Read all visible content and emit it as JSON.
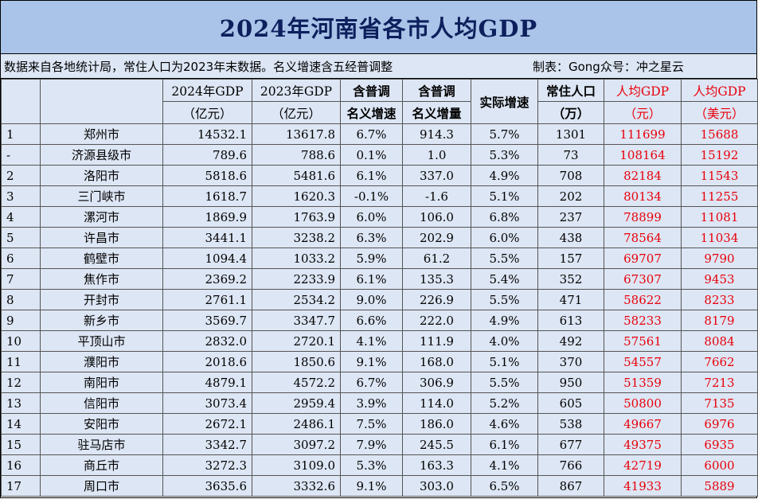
{
  "title": "2024年河南省各市人均GDP",
  "note": {
    "source": "数据来自各地统计局，常住人口为2023年末数据。名义增速含五经普调整",
    "author": "制表：Gong众号：冲之星云"
  },
  "headers": {
    "gdp2024": [
      "2024年GDP",
      "（亿元）"
    ],
    "gdp2023": [
      "2023年GDP",
      "（亿元）"
    ],
    "nominal_rate": [
      "含普调",
      "名义增速"
    ],
    "nominal_inc": [
      "含普调",
      "名义增量"
    ],
    "real_rate": "实际增速",
    "population": [
      "常住人口",
      "（万）"
    ],
    "per_cny": [
      "人均GDP",
      "（元）"
    ],
    "per_usd": [
      "人均GDP",
      "（美元）"
    ]
  },
  "rows": [
    {
      "rank": "1",
      "city": "郑州市",
      "gdp2024": "14532.1",
      "gdp2023": "13617.8",
      "nominal_rate": "6.7%",
      "nominal_inc": "914.3",
      "real_rate": "5.7%",
      "population": "1301",
      "per_cny": "111699",
      "per_usd": "15688"
    },
    {
      "rank": "-",
      "city": "济源县级市",
      "gdp2024": "789.6",
      "gdp2023": "788.6",
      "nominal_rate": "0.1%",
      "nominal_inc": "1.0",
      "real_rate": "5.3%",
      "population": "73",
      "per_cny": "108164",
      "per_usd": "15192"
    },
    {
      "rank": "2",
      "city": "洛阳市",
      "gdp2024": "5818.6",
      "gdp2023": "5481.6",
      "nominal_rate": "6.1%",
      "nominal_inc": "337.0",
      "real_rate": "4.9%",
      "population": "708",
      "per_cny": "82184",
      "per_usd": "11543"
    },
    {
      "rank": "3",
      "city": "三门峡市",
      "gdp2024": "1618.7",
      "gdp2023": "1620.3",
      "nominal_rate": "-0.1%",
      "nominal_inc": "-1.6",
      "real_rate": "5.1%",
      "population": "202",
      "per_cny": "80134",
      "per_usd": "11255"
    },
    {
      "rank": "4",
      "city": "漯河市",
      "gdp2024": "1869.9",
      "gdp2023": "1763.9",
      "nominal_rate": "6.0%",
      "nominal_inc": "106.0",
      "real_rate": "6.8%",
      "population": "237",
      "per_cny": "78899",
      "per_usd": "11081"
    },
    {
      "rank": "5",
      "city": "许昌市",
      "gdp2024": "3441.1",
      "gdp2023": "3238.2",
      "nominal_rate": "6.3%",
      "nominal_inc": "202.9",
      "real_rate": "6.0%",
      "population": "438",
      "per_cny": "78564",
      "per_usd": "11034"
    },
    {
      "rank": "6",
      "city": "鹤壁市",
      "gdp2024": "1094.4",
      "gdp2023": "1033.2",
      "nominal_rate": "5.9%",
      "nominal_inc": "61.2",
      "real_rate": "5.5%",
      "population": "157",
      "per_cny": "69707",
      "per_usd": "9790"
    },
    {
      "rank": "7",
      "city": "焦作市",
      "gdp2024": "2369.2",
      "gdp2023": "2233.9",
      "nominal_rate": "6.1%",
      "nominal_inc": "135.3",
      "real_rate": "5.4%",
      "population": "352",
      "per_cny": "67307",
      "per_usd": "9453"
    },
    {
      "rank": "8",
      "city": "开封市",
      "gdp2024": "2761.1",
      "gdp2023": "2534.2",
      "nominal_rate": "9.0%",
      "nominal_inc": "226.9",
      "real_rate": "5.5%",
      "population": "471",
      "per_cny": "58622",
      "per_usd": "8233"
    },
    {
      "rank": "9",
      "city": "新乡市",
      "gdp2024": "3569.7",
      "gdp2023": "3347.7",
      "nominal_rate": "6.6%",
      "nominal_inc": "222.0",
      "real_rate": "4.9%",
      "population": "613",
      "per_cny": "58233",
      "per_usd": "8179"
    },
    {
      "rank": "10",
      "city": "平顶山市",
      "gdp2024": "2832.0",
      "gdp2023": "2720.1",
      "nominal_rate": "4.1%",
      "nominal_inc": "111.9",
      "real_rate": "4.0%",
      "population": "492",
      "per_cny": "57561",
      "per_usd": "8084"
    },
    {
      "rank": "11",
      "city": "濮阳市",
      "gdp2024": "2018.6",
      "gdp2023": "1850.6",
      "nominal_rate": "9.1%",
      "nominal_inc": "168.0",
      "real_rate": "5.1%",
      "population": "370",
      "per_cny": "54557",
      "per_usd": "7662"
    },
    {
      "rank": "12",
      "city": "南阳市",
      "gdp2024": "4879.1",
      "gdp2023": "4572.2",
      "nominal_rate": "6.7%",
      "nominal_inc": "306.9",
      "real_rate": "5.5%",
      "population": "950",
      "per_cny": "51359",
      "per_usd": "7213"
    },
    {
      "rank": "13",
      "city": "信阳市",
      "gdp2024": "3073.4",
      "gdp2023": "2959.4",
      "nominal_rate": "3.9%",
      "nominal_inc": "114.0",
      "real_rate": "5.2%",
      "population": "605",
      "per_cny": "50800",
      "per_usd": "7135"
    },
    {
      "rank": "14",
      "city": "安阳市",
      "gdp2024": "2672.1",
      "gdp2023": "2486.1",
      "nominal_rate": "7.5%",
      "nominal_inc": "186.0",
      "real_rate": "4.6%",
      "population": "538",
      "per_cny": "49667",
      "per_usd": "6976"
    },
    {
      "rank": "15",
      "city": "驻马店市",
      "gdp2024": "3342.7",
      "gdp2023": "3097.2",
      "nominal_rate": "7.9%",
      "nominal_inc": "245.5",
      "real_rate": "6.1%",
      "population": "677",
      "per_cny": "49375",
      "per_usd": "6935"
    },
    {
      "rank": "16",
      "city": "商丘市",
      "gdp2024": "3272.3",
      "gdp2023": "3109.0",
      "nominal_rate": "5.3%",
      "nominal_inc": "163.3",
      "real_rate": "4.1%",
      "population": "766",
      "per_cny": "42719",
      "per_usd": "6000"
    },
    {
      "rank": "17",
      "city": "周口市",
      "gdp2024": "3635.6",
      "gdp2023": "3332.6",
      "nominal_rate": "9.1%",
      "nominal_inc": "303.0",
      "real_rate": "6.5%",
      "population": "867",
      "per_cny": "41933",
      "per_usd": "5889"
    }
  ]
}
